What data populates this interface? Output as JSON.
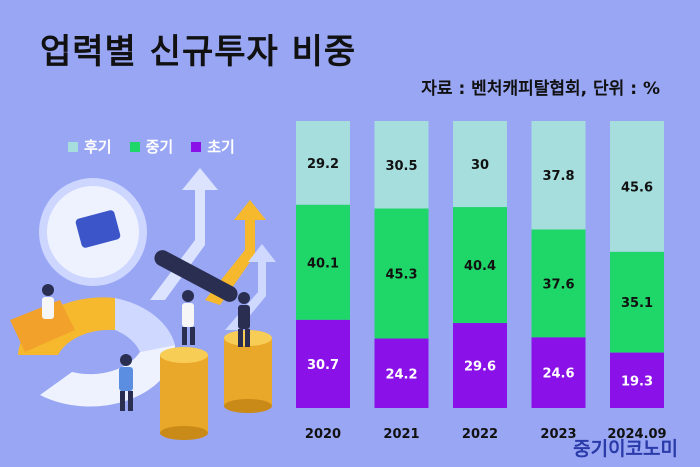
{
  "header": {
    "title": "업력별 신규투자 비중",
    "source": "자료 : 벤처캐피탈협회, 단위 : %"
  },
  "watermark": "중기이코노미",
  "colors": {
    "background": "#98a6f4",
    "late": "#a6dede",
    "mid": "#1fd768",
    "early": "#8a12e8"
  },
  "chart_data": {
    "type": "bar",
    "stacked": true,
    "normalized": true,
    "categories": [
      "2020",
      "2021",
      "2022",
      "2023",
      "2024.09"
    ],
    "series": [
      {
        "name": "후기",
        "values": [
          29.2,
          30.5,
          30,
          37.8,
          45.6
        ]
      },
      {
        "name": "중기",
        "values": [
          40.1,
          45.3,
          40.4,
          37.6,
          35.1
        ]
      },
      {
        "name": "초기",
        "values": [
          30.7,
          24.2,
          29.6,
          24.6,
          19.3
        ]
      }
    ],
    "legend": [
      "후기",
      "중기",
      "초기"
    ],
    "title": "업력별 신규투자 비중",
    "ylim": [
      0,
      100
    ]
  }
}
